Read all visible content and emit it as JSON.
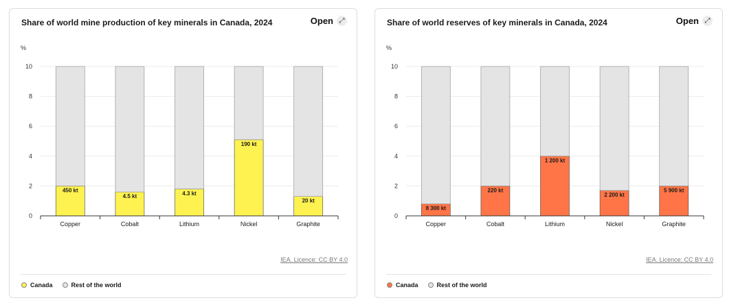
{
  "open_label": "Open",
  "unit_label": "%",
  "license_text": "IEA. Licence: CC BY 4.0",
  "colors": {
    "rest_of_world": "#e4e4e4",
    "grid": "#ececec"
  },
  "chart_data": [
    {
      "type": "bar",
      "stacked": true,
      "title": "Share of world mine production of key minerals in Canada, 2024",
      "categories": [
        "Copper",
        "Cobalt",
        "Lithium",
        "Nickel",
        "Graphite"
      ],
      "ylabel": "%",
      "ylim": [
        0,
        10
      ],
      "yticks": [
        0,
        2,
        4,
        6,
        8,
        10
      ],
      "series": [
        {
          "name": "Canada",
          "color": "#fef251",
          "values": [
            2.0,
            1.6,
            1.8,
            5.1,
            1.3
          ]
        },
        {
          "name": "Rest of the world",
          "color": "#e4e4e4",
          "values": [
            8.0,
            8.4,
            8.2,
            4.9,
            8.7
          ]
        }
      ],
      "data_labels": [
        "450 kt",
        "4.5 kt",
        "4.3 kt",
        "190 kt",
        "20 kt"
      ],
      "grid": true,
      "legend": "bottom-left"
    },
    {
      "type": "bar",
      "stacked": true,
      "title": "Share of world reserves of key minerals in Canada, 2024",
      "categories": [
        "Copper",
        "Cobalt",
        "Lithium",
        "Nickel",
        "Graphite"
      ],
      "ylabel": "%",
      "ylim": [
        0,
        10
      ],
      "yticks": [
        0,
        2,
        4,
        6,
        8,
        10
      ],
      "series": [
        {
          "name": "Canada",
          "color": "#ff7547",
          "values": [
            0.8,
            2.0,
            4.0,
            1.7,
            2.0
          ]
        },
        {
          "name": "Rest of the world",
          "color": "#e4e4e4",
          "values": [
            9.2,
            8.0,
            6.0,
            8.3,
            8.0
          ]
        }
      ],
      "data_labels": [
        "8 300 kt",
        "220 kt",
        "1 200 kt",
        "2 200 kt",
        "5 900 kt"
      ],
      "grid": true,
      "legend": "bottom-left"
    }
  ]
}
